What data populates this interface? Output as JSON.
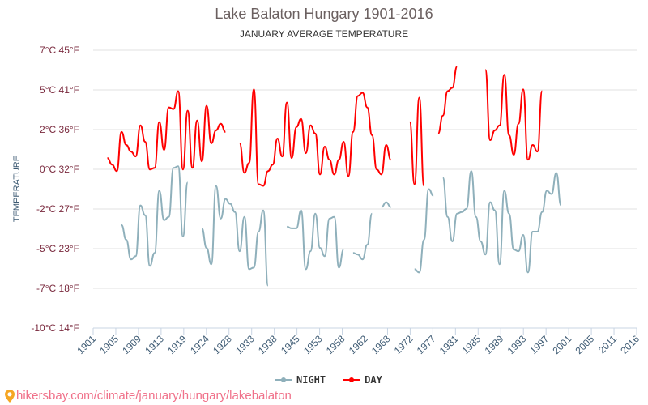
{
  "header": {
    "title": "Lake Balaton Hungary 1901-2016",
    "subtitle": "JANUARY AVERAGE TEMPERATURE"
  },
  "footer": {
    "icon": "map-pin-icon",
    "url_text": "hikersbay.com/climate/january/hungary/lakebalaton"
  },
  "legend": {
    "items": [
      {
        "label": "NIGHT",
        "color": "#8fb0bb"
      },
      {
        "label": "DAY",
        "color": "#ff0000"
      }
    ]
  },
  "chart_data": {
    "type": "line",
    "title": "Lake Balaton Hungary 1901-2016",
    "subtitle": "JANUARY AVERAGE TEMPERATURE",
    "xlabel": "",
    "ylabel": "TEMPERATURE",
    "ylim": [
      -10,
      7
    ],
    "yticks": [
      "7°C 45°F",
      "5°C 41°F",
      "2°C 36°F",
      "0°C 32°F",
      "-2°C 27°F",
      "-5°C 23°F",
      "-7°C 18°F",
      "-10°C 14°F"
    ],
    "xticks": [
      "1901",
      "1905",
      "1909",
      "1913",
      "1919",
      "1924",
      "1928",
      "1933",
      "1938",
      "1945",
      "1953",
      "1958",
      "1962",
      "1968",
      "1972",
      "1977",
      "1981",
      "1985",
      "1989",
      "1993",
      "1997",
      "2001",
      "2005",
      "2011",
      "2016"
    ],
    "grid": true,
    "legend_position": "bottom-center",
    "x_count": 116,
    "series": [
      {
        "name": "DAY",
        "color": "#ff0000",
        "values": [
          null,
          null,
          null,
          0.4,
          0.0,
          -0.4,
          2.0,
          1.2,
          0.8,
          0.5,
          2.4,
          1.4,
          -0.3,
          -0.2,
          2.6,
          0.9,
          3.5,
          3.4,
          4.5,
          -0.3,
          3.3,
          -0.2,
          2.7,
          0.2,
          3.6,
          1.3,
          2.1,
          2.5,
          2.0,
          null,
          null,
          1.3,
          -0.5,
          0.1,
          4.6,
          -1.2,
          -1.3,
          -0.4,
          0.0,
          1.6,
          0.5,
          3.8,
          0.4,
          2.3,
          2.8,
          0.7,
          2.4,
          1.9,
          -0.6,
          1.1,
          0.3,
          -0.6,
          0.3,
          1.4,
          -0.7,
          2.0,
          4.2,
          4.4,
          3.5,
          1.8,
          -0.3,
          -0.6,
          1.2,
          0.3,
          null,
          null,
          null,
          2.6,
          -1.2,
          4.1,
          -1.3,
          null,
          null,
          1.9,
          3.0,
          4.5,
          4.7,
          6.0,
          null,
          null,
          null,
          null,
          null,
          5.8,
          1.5,
          2.1,
          2.4,
          5.5,
          1.8,
          0.6,
          2.5,
          4.6,
          0.3,
          1.2,
          0.8,
          4.5,
          null,
          null,
          null,
          null,
          null,
          null,
          null,
          null,
          null,
          null,
          null,
          null,
          null,
          null,
          null,
          null,
          null,
          null,
          null,
          null
        ]
      },
      {
        "name": "NIGHT",
        "color": "#8fb0bb",
        "values": [
          null,
          null,
          null,
          null,
          null,
          null,
          -3.7,
          -4.6,
          -5.8,
          -5.6,
          -2.5,
          -3.1,
          -6.2,
          -5.4,
          -1.6,
          -3.4,
          -3.2,
          -0.2,
          -0.1,
          -4.4,
          -1.1,
          null,
          null,
          -3.9,
          -5.1,
          -6.1,
          -1.3,
          -3.3,
          -2.1,
          -2.4,
          -2.9,
          -5.3,
          -3.2,
          -6.4,
          -6.3,
          -4.1,
          -2.8,
          -7.4,
          null,
          null,
          null,
          -3.8,
          -3.9,
          -3.9,
          -2.8,
          -6.4,
          -5.3,
          -3.0,
          -5.1,
          -5.6,
          -3.3,
          -3.2,
          -6.3,
          -5.2,
          null,
          -5.4,
          -5.5,
          -5.8,
          -4.9,
          -3.0,
          null,
          -2.6,
          -2.3,
          -2.6,
          null,
          null,
          null,
          null,
          -6.4,
          -6.6,
          -4.6,
          -1.5,
          -1.9,
          null,
          -0.8,
          -3.2,
          -4.7,
          -3.0,
          -2.9,
          -2.7,
          -0.4,
          -3.2,
          -4.7,
          -5.5,
          -2.3,
          -2.8,
          -6.1,
          -1.6,
          -3.0,
          -5.2,
          -5.3,
          -4.3,
          -6.6,
          -4.1,
          -4.1,
          -2.9,
          -1.6,
          -1.8,
          -0.5,
          -2.5,
          null,
          null,
          null,
          null,
          null,
          null,
          null,
          null,
          null,
          null,
          null,
          null,
          null,
          null,
          null,
          null
        ]
      }
    ]
  }
}
